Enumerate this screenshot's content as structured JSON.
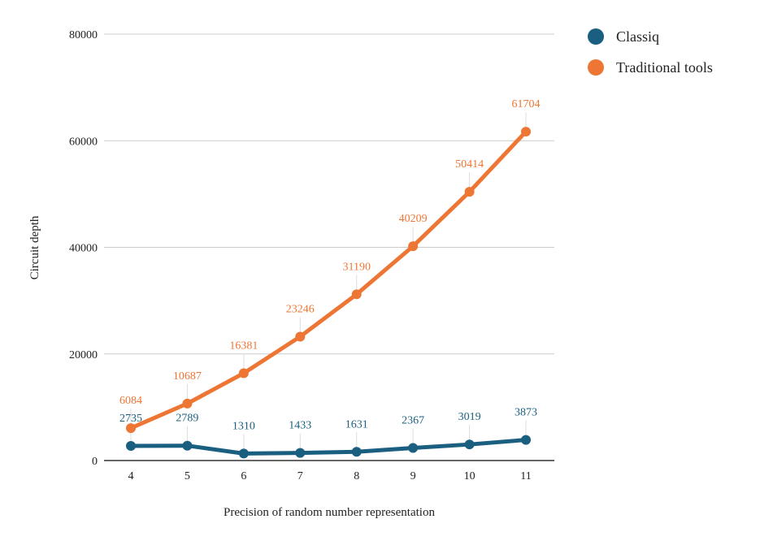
{
  "chart_data": {
    "type": "line",
    "title": "",
    "xlabel": "Precision of random number representation",
    "ylabel": "Circuit depth",
    "categories": [
      "4",
      "5",
      "6",
      "7",
      "8",
      "9",
      "10",
      "11"
    ],
    "ylim": [
      0,
      80000
    ],
    "yticks": [
      "0",
      "20000",
      "40000",
      "60000",
      "80000"
    ],
    "grid": true,
    "legend_position": "top-right",
    "series": [
      {
        "name": "Classiq",
        "color": "#1b5f80",
        "values": [
          2735,
          2789,
          1310,
          1433,
          1631,
          2367,
          3019,
          3873
        ]
      },
      {
        "name": "Traditional tools",
        "color": "#ee7634",
        "values": [
          6084,
          10687,
          16381,
          23246,
          31190,
          40209,
          50414,
          61704
        ]
      }
    ]
  }
}
